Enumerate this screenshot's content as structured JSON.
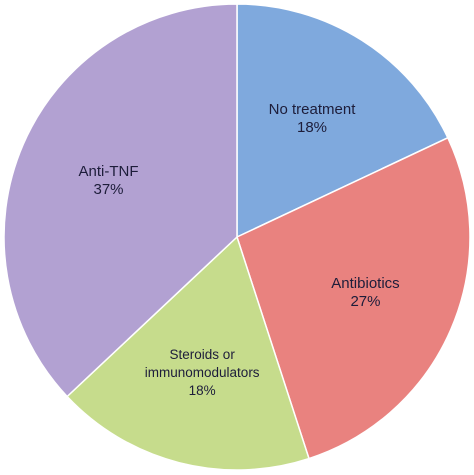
{
  "chart_data": {
    "type": "pie",
    "categories": [
      "No treatment",
      "Antibiotics",
      "Steroids or immunomodulators",
      "Anti-TNF"
    ],
    "values": [
      18,
      27,
      18,
      37
    ],
    "value_labels": [
      "18%",
      "27%",
      "18%",
      "37%"
    ],
    "colors": [
      "#7fa9dd",
      "#e9827f",
      "#c6dc8c",
      "#b2a1d2"
    ]
  }
}
